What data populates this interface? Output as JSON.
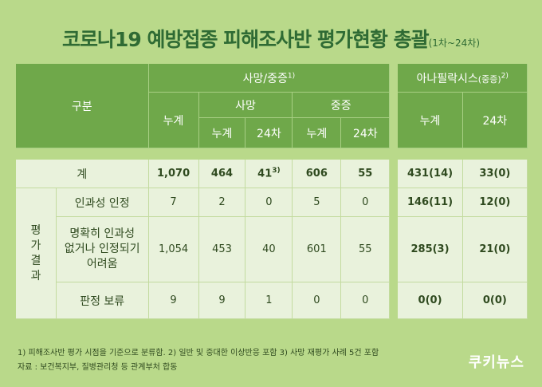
{
  "title": "코로나19 예방접종 피해조사반 평가현황 총괄",
  "title_sub": "(1차~24차)",
  "header": {
    "group_label": "구분",
    "death_severe": "사망/중증",
    "death_severe_note": "1)",
    "anaphylaxis": "아나필락시스",
    "anaphylaxis_paren": "(중증)",
    "anaphylaxis_note": "2)",
    "cumulative": "누계",
    "death": "사망",
    "severe": "중증",
    "round24": "24차"
  },
  "rows": [
    {
      "label": "계",
      "values": [
        "1,070",
        "464",
        "41",
        "606",
        "55",
        "431(14)",
        "33(0)"
      ],
      "note_on_3": "3)"
    },
    {
      "label": "인과성 인정",
      "values": [
        "7",
        "2",
        "0",
        "5",
        "0",
        "146(11)",
        "12(0)"
      ]
    },
    {
      "label_lines": [
        "명확히 인과성",
        "없거나 인정되기",
        "어려움"
      ],
      "values": [
        "1,054",
        "453",
        "40",
        "601",
        "55",
        "285(3)",
        "21(0)"
      ]
    },
    {
      "label": "판정 보류",
      "values": [
        "9",
        "9",
        "1",
        "0",
        "0",
        "0(0)",
        "0(0)"
      ]
    }
  ],
  "side_label": [
    "평",
    "가",
    "결",
    "과"
  ],
  "footnotes": [
    "1) 피해조사반 평가 시점을 기준으로 분류함.  2) 일반 및 중대한 이상반응 포함  3) 사망 재평가 사례 5건 포함",
    "자료 : 보건복지부, 질병관리청 등 관계부처 합동"
  ],
  "logo": "쿠키뉴스",
  "colors": {
    "background": "#b9d98a",
    "header": "#6fa84a",
    "body": "#e9f2dc",
    "title": "#2f6b34"
  }
}
